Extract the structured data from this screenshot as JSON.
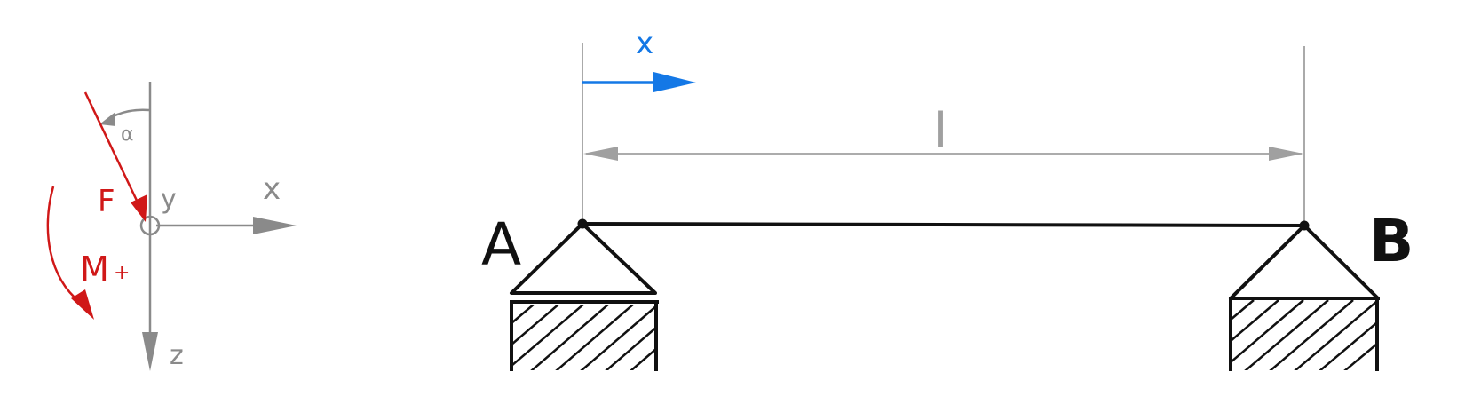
{
  "colors": {
    "axis_gray": "#8a8a8a",
    "load_red": "#d01818",
    "coord_blue": "#1478e6",
    "beam_black": "#111111"
  },
  "sign_convention": {
    "x_label": "x",
    "z_label": "z",
    "y_label": "y",
    "alpha_label": "α",
    "force_label": "F",
    "moment_label": "M",
    "moment_sign": "+"
  },
  "beam": {
    "coord_label": "x",
    "length_label": "l",
    "support_a_label": "A",
    "support_b_label": "B",
    "support_a_type": "pinned",
    "support_b_type": "pinned"
  }
}
